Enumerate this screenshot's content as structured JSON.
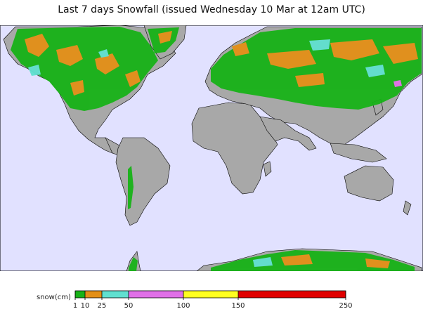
{
  "title": "Last 7 days Snowfall (issued Wednesday 10 Mar at 12am UTC)",
  "colors": {
    "ocean": "#e1e1ff",
    "land": "#a8a8a8",
    "snow_1_10": "#17b217",
    "snow_10_25": "#e38f17",
    "snow_25_50": "#60e0d0",
    "snow_50_100": "#e070e8",
    "snow_100_150": "#ffff20",
    "snow_150_250": "#e00000"
  },
  "legend": {
    "label": "snow(cm)",
    "ticks": [
      "1",
      "10",
      "25",
      "50",
      "100",
      "150",
      "250"
    ],
    "bins": [
      {
        "from": 1,
        "to": 10,
        "color": "#17b217"
      },
      {
        "from": 10,
        "to": 25,
        "color": "#e38f17"
      },
      {
        "from": 25,
        "to": 50,
        "color": "#60e0d0"
      },
      {
        "from": 50,
        "to": 100,
        "color": "#e070e8"
      },
      {
        "from": 100,
        "to": 150,
        "color": "#ffff20"
      },
      {
        "from": 150,
        "to": 250,
        "color": "#e00000"
      }
    ]
  }
}
